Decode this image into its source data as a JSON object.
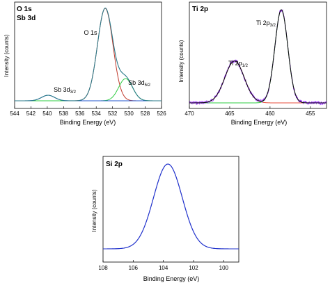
{
  "chart_data": [
    {
      "type": "line",
      "panel_title_lines": [
        "O 1s",
        "Sb 3d"
      ],
      "xlabel": "Binding Energy (eV)",
      "ylabel": "Intensity (counts)",
      "xlim": [
        544,
        526
      ],
      "xticks": [
        "544",
        "542",
        "540",
        "538",
        "536",
        "534",
        "532",
        "530",
        "528",
        "526"
      ],
      "reversed_x": true,
      "annotations": [
        {
          "text": "O 1s",
          "sub": ""
        },
        {
          "text": "Sb 3d",
          "sub": "3/2"
        },
        {
          "text": "Sb 3d",
          "sub": "5/2"
        }
      ],
      "peaks": [
        {
          "color": "#c0392b",
          "center": 532.9,
          "height": 1.0,
          "width": 0.95
        },
        {
          "color": "#2ecc40",
          "center": 530.4,
          "height": 0.24,
          "width": 0.85
        },
        {
          "color": "#2255cc",
          "center": 539.9,
          "height": 0.06,
          "width": 0.8
        }
      ],
      "envelope_color": "#2a7a8a"
    },
    {
      "type": "line",
      "panel_title_lines": [
        "Ti 2p"
      ],
      "xlabel": "Binding Energy (eV)",
      "ylabel": "Intensity (counts)",
      "xlim": [
        470,
        453
      ],
      "xticks": [
        "470",
        "465",
        "460",
        "455"
      ],
      "reversed_x": true,
      "annotations": [
        {
          "text": "Ti 2p",
          "sub": "1/2"
        },
        {
          "text": "Ti 2p",
          "sub": "3/2"
        }
      ],
      "peaks": [
        {
          "color": "#e74c3c",
          "center": 464.4,
          "height": 0.45,
          "width": 1.2
        },
        {
          "color": "#2ecc40",
          "center": 458.6,
          "height": 1.0,
          "width": 0.8
        }
      ],
      "envelope_color": "#111111",
      "raw_color": "#9b30ff"
    },
    {
      "type": "line",
      "panel_title_lines": [
        "Si 2p"
      ],
      "xlabel": "Binding Energy (eV)",
      "ylabel": "Intensity (counts)",
      "xlim": [
        108,
        99
      ],
      "xticks": [
        "108",
        "106",
        "104",
        "102",
        "100"
      ],
      "reversed_x": true,
      "annotations": [],
      "peaks": [
        {
          "color": "#2233cc",
          "center": 103.7,
          "height": 1.0,
          "width": 0.95
        }
      ],
      "envelope_color": "#2233cc"
    }
  ]
}
